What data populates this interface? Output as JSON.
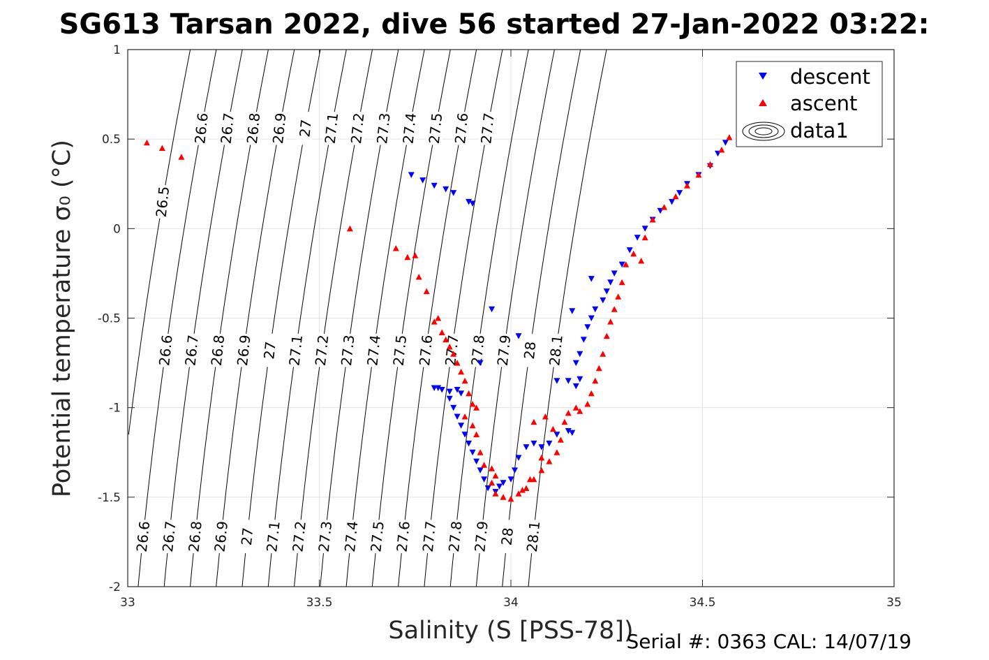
{
  "chart_data": {
    "type": "scatter",
    "title": "SG613 Tarsan 2022, dive 56 started 27-Jan-2022 03:22:",
    "xlabel": "Salinity (S [PSS-78])",
    "ylabel": "Potential temperature σ₀ (°C)",
    "footer": "Serial #: 0363  CAL: 14/07/19",
    "xlim": [
      33,
      35
    ],
    "ylim": [
      -2,
      1
    ],
    "x_ticks": [
      "33",
      "33.5",
      "34",
      "34.5",
      "35"
    ],
    "y_ticks": [
      "-2",
      "-1.5",
      "-1",
      "-0.5",
      "0",
      "0.5",
      "1"
    ],
    "grid": true,
    "legend_position": "top-right",
    "legend": [
      "descent",
      "ascent",
      "data1"
    ],
    "contour_levels": [
      "26.5",
      "26.6",
      "26.7",
      "26.8",
      "26.9",
      "27",
      "27.1",
      "27.2",
      "27.3",
      "27.4",
      "27.5",
      "27.6",
      "27.7",
      "27.8",
      "27.9",
      "28",
      "28.1"
    ],
    "series": [
      {
        "name": "descent",
        "marker": "triangle-down",
        "color": "#0000ff",
        "points": [
          [
            33.74,
            0.3
          ],
          [
            33.77,
            0.27
          ],
          [
            33.8,
            0.24
          ],
          [
            33.83,
            0.22
          ],
          [
            33.85,
            0.2
          ],
          [
            33.89,
            0.15
          ],
          [
            33.9,
            0.14
          ],
          [
            33.81,
            -0.89
          ],
          [
            33.8,
            -0.89
          ],
          [
            33.82,
            -0.9
          ],
          [
            33.84,
            -0.91
          ],
          [
            33.86,
            -0.9
          ],
          [
            33.87,
            -0.92
          ],
          [
            33.84,
            -0.95
          ],
          [
            33.85,
            -1.0
          ],
          [
            33.86,
            -1.05
          ],
          [
            33.87,
            -1.1
          ],
          [
            33.88,
            -1.15
          ],
          [
            33.89,
            -1.2
          ],
          [
            33.9,
            -1.25
          ],
          [
            33.91,
            -1.3
          ],
          [
            33.92,
            -1.35
          ],
          [
            33.93,
            -1.4
          ],
          [
            33.94,
            -1.45
          ],
          [
            33.96,
            -1.47
          ],
          [
            33.97,
            -1.44
          ],
          [
            33.98,
            -1.42
          ],
          [
            34.0,
            -1.4
          ],
          [
            34.01,
            -1.35
          ],
          [
            34.02,
            -1.28
          ],
          [
            34.04,
            -1.22
          ],
          [
            34.06,
            -1.2
          ],
          [
            34.08,
            -1.22
          ],
          [
            34.1,
            -1.2
          ],
          [
            34.12,
            -1.15
          ],
          [
            34.15,
            -1.13
          ],
          [
            34.16,
            -1.14
          ],
          [
            34.12,
            -0.85
          ],
          [
            34.15,
            -0.85
          ],
          [
            34.17,
            -0.88
          ],
          [
            34.18,
            -0.84
          ],
          [
            34.17,
            -0.75
          ],
          [
            34.18,
            -0.7
          ],
          [
            34.19,
            -0.62
          ],
          [
            34.2,
            -0.55
          ],
          [
            34.21,
            -0.5
          ],
          [
            34.22,
            -0.45
          ],
          [
            34.24,
            -0.4
          ],
          [
            34.25,
            -0.35
          ],
          [
            34.26,
            -0.3
          ],
          [
            34.27,
            -0.25
          ],
          [
            34.29,
            -0.2
          ],
          [
            34.31,
            -0.12
          ],
          [
            34.33,
            -0.05
          ],
          [
            34.35,
            0.0
          ],
          [
            34.37,
            0.05
          ],
          [
            34.39,
            0.1
          ],
          [
            34.42,
            0.15
          ],
          [
            34.44,
            0.2
          ],
          [
            34.46,
            0.25
          ],
          [
            34.49,
            0.3
          ],
          [
            34.52,
            0.35
          ],
          [
            34.54,
            0.42
          ],
          [
            34.56,
            0.48
          ],
          [
            33.92,
            -0.75
          ],
          [
            33.95,
            -0.45
          ],
          [
            34.02,
            -0.6
          ],
          [
            34.16,
            -0.46
          ],
          [
            34.21,
            -0.28
          ]
        ]
      },
      {
        "name": "ascent",
        "marker": "triangle-up",
        "color": "#ff0000",
        "points": [
          [
            33.05,
            0.48
          ],
          [
            33.09,
            0.45
          ],
          [
            33.14,
            0.4
          ],
          [
            33.58,
            0.0
          ],
          [
            33.7,
            -0.11
          ],
          [
            33.73,
            -0.16
          ],
          [
            33.75,
            -0.15
          ],
          [
            33.76,
            -0.27
          ],
          [
            33.78,
            -0.35
          ],
          [
            33.8,
            -0.52
          ],
          [
            33.81,
            -0.5
          ],
          [
            33.82,
            -0.58
          ],
          [
            33.83,
            -0.62
          ],
          [
            33.84,
            -0.66
          ],
          [
            33.85,
            -0.7
          ],
          [
            33.86,
            -0.75
          ],
          [
            33.87,
            -0.8
          ],
          [
            33.88,
            -0.85
          ],
          [
            33.89,
            -0.92
          ],
          [
            33.9,
            -0.98
          ],
          [
            33.88,
            -1.05
          ],
          [
            33.9,
            -1.1
          ],
          [
            33.91,
            -1.15
          ],
          [
            33.92,
            -1.25
          ],
          [
            33.93,
            -1.32
          ],
          [
            33.95,
            -1.34
          ],
          [
            33.96,
            -1.38
          ],
          [
            33.95,
            -1.42
          ],
          [
            33.96,
            -1.48
          ],
          [
            33.98,
            -1.5
          ],
          [
            34.0,
            -1.51
          ],
          [
            34.02,
            -1.48
          ],
          [
            34.04,
            -1.45
          ],
          [
            34.06,
            -1.4
          ],
          [
            34.08,
            -1.35
          ],
          [
            34.1,
            -1.3
          ],
          [
            34.12,
            -1.25
          ],
          [
            34.13,
            -1.18
          ],
          [
            34.14,
            -1.08
          ],
          [
            34.15,
            -1.03
          ],
          [
            34.17,
            -1.0
          ],
          [
            34.18,
            -1.02
          ],
          [
            34.2,
            -0.98
          ],
          [
            34.21,
            -0.92
          ],
          [
            34.22,
            -0.85
          ],
          [
            34.23,
            -0.78
          ],
          [
            34.24,
            -0.7
          ],
          [
            34.25,
            -0.6
          ],
          [
            34.26,
            -0.52
          ],
          [
            34.27,
            -0.45
          ],
          [
            34.28,
            -0.38
          ],
          [
            34.29,
            -0.3
          ],
          [
            34.3,
            -0.2
          ],
          [
            34.32,
            -0.14
          ],
          [
            34.34,
            -0.18
          ],
          [
            34.35,
            -0.05
          ],
          [
            34.37,
            0.05
          ],
          [
            34.4,
            0.12
          ],
          [
            34.43,
            0.18
          ],
          [
            34.46,
            0.24
          ],
          [
            34.49,
            0.3
          ],
          [
            34.52,
            0.36
          ],
          [
            34.55,
            0.44
          ],
          [
            34.57,
            0.51
          ],
          [
            34.06,
            -1.08
          ],
          [
            34.09,
            -1.05
          ],
          [
            34.11,
            -1.12
          ],
          [
            33.91,
            -1.0
          ],
          [
            34.08,
            -1.28
          ],
          [
            34.05,
            -1.4
          ],
          [
            34.03,
            -1.46
          ]
        ]
      }
    ]
  }
}
